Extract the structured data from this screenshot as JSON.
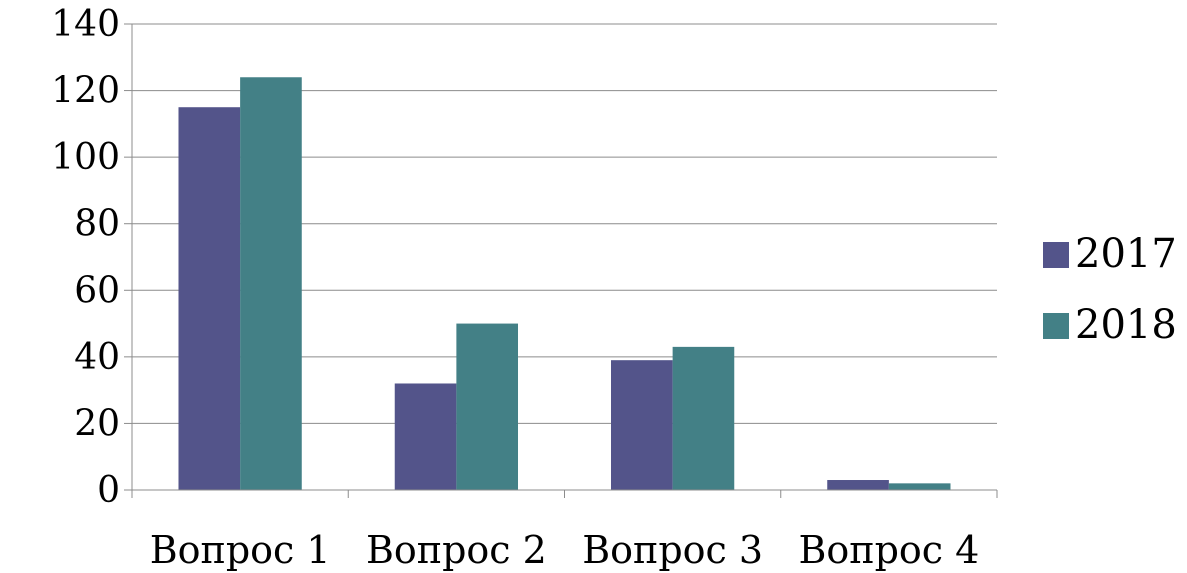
{
  "chart_data": {
    "type": "bar",
    "categories": [
      "Вопрос 1",
      "Вопрос 2",
      "Вопрос 3",
      "Вопрос 4"
    ],
    "series": [
      {
        "name": "2017",
        "values": [
          115,
          32,
          39,
          3
        ],
        "color": "#53548a"
      },
      {
        "name": "2018",
        "values": [
          124,
          50,
          43,
          2
        ],
        "color": "#438086"
      }
    ],
    "yticks": [
      "0",
      "20",
      "40",
      "60",
      "80",
      "100",
      "120",
      "140"
    ],
    "ylim": [
      0,
      140
    ],
    "grid": true,
    "legend": "right"
  }
}
